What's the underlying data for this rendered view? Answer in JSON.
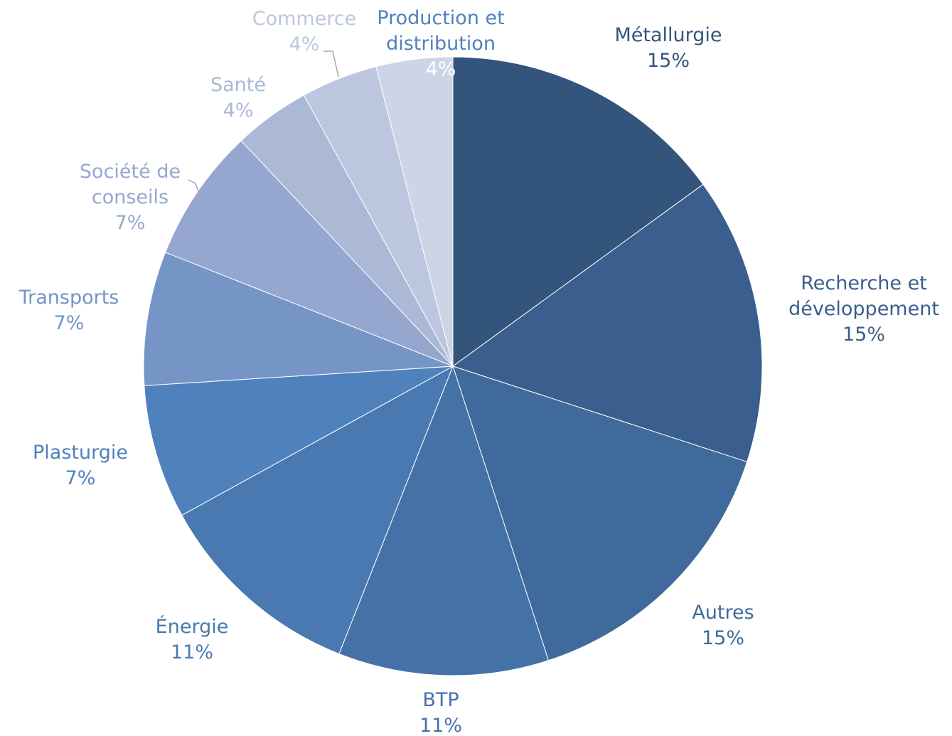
{
  "chart_data": {
    "type": "pie",
    "categories": [
      "Métallurgie",
      "Recherche et développement",
      "Autres",
      "BTP",
      "Énergie",
      "Plasturgie",
      "Transports",
      "Société de conseils",
      "Santé",
      "Commerce",
      "Production et distribution"
    ],
    "values": [
      15,
      15,
      15,
      11,
      11,
      7,
      7,
      7,
      4,
      4,
      4
    ],
    "value_labels": [
      "15%",
      "15%",
      "15%",
      "11%",
      "11%",
      "7%",
      "7%",
      "7%",
      "4%",
      "4%",
      "4%"
    ],
    "colors": [
      "#33557c",
      "#3a5e8d",
      "#3f6a9b",
      "#4572a6",
      "#4a79b2",
      "#4f81bd",
      "#7595c6",
      "#95a7cf",
      "#abb8d6",
      "#bcc6de",
      "#cdd4e6"
    ]
  }
}
